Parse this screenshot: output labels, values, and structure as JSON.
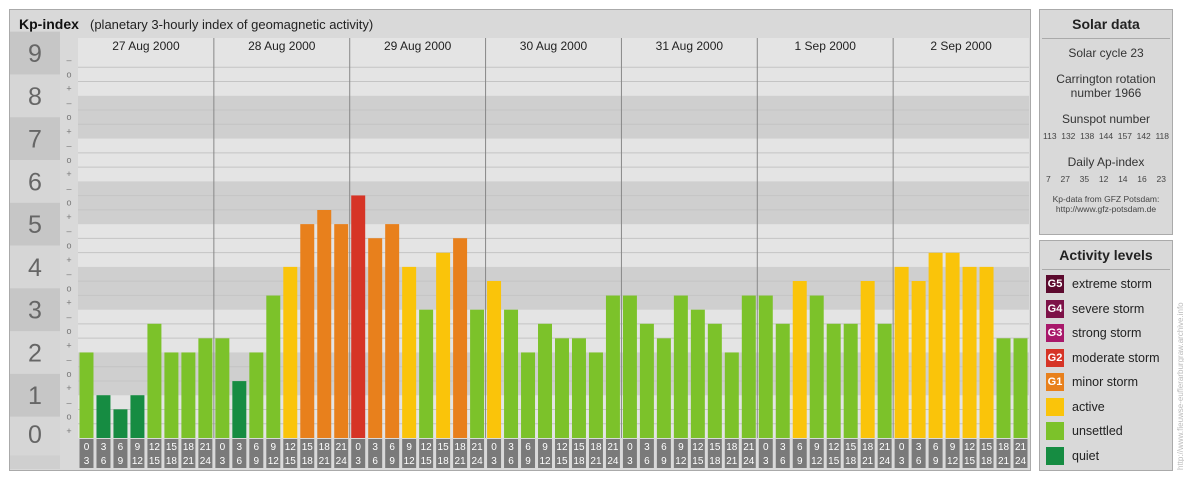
{
  "header": {
    "title": "Kp-index",
    "subtitle": "(planetary 3-hourly index of geomagnetic activity)"
  },
  "solar": {
    "title": "Solar data",
    "cycle": "Solar cycle 23",
    "carrington_line1": "Carrington rotation",
    "carrington_line2": "number 1966",
    "sunspot_title": "Sunspot number",
    "sunspot_values": [
      "113",
      "132",
      "138",
      "144",
      "157",
      "142",
      "118"
    ],
    "ap_title": "Daily Ap-index",
    "ap_values": [
      "7",
      "27",
      "35",
      "12",
      "14",
      "16",
      "23"
    ],
    "source_line1": "Kp-data from GFZ Potsdam:",
    "source_line2": "http://www.gfz-potsdam.de"
  },
  "activity": {
    "title": "Activity levels",
    "items": [
      {
        "code": "G5",
        "label": "extreme storm",
        "color": "#5c0a2e"
      },
      {
        "code": "G4",
        "label": "severe storm",
        "color": "#7d1248"
      },
      {
        "code": "G3",
        "label": "strong storm",
        "color": "#a8186a"
      },
      {
        "code": "G2",
        "label": "moderate storm",
        "color": "#d63426"
      },
      {
        "code": "G1",
        "label": "minor storm",
        "color": "#e8801c"
      },
      {
        "code": "",
        "label": "active",
        "color": "#fac40a"
      },
      {
        "code": "",
        "label": "unsettled",
        "color": "#7cc22a"
      },
      {
        "code": "",
        "label": "quiet",
        "color": "#168c42"
      }
    ]
  },
  "watermark": "http://www.fieuwse-euflerarburgraw.archive.info",
  "chart_data": {
    "type": "bar",
    "title": "Kp-index",
    "ylim": [
      0,
      9
    ],
    "y_ticks": [
      "0",
      "1",
      "2",
      "3",
      "4",
      "5",
      "6",
      "7",
      "8",
      "9"
    ],
    "sub_ticks": [
      "+",
      "o",
      "–"
    ],
    "days": [
      "27 Aug 2000",
      "28 Aug 2000",
      "29 Aug 2000",
      "30 Aug 2000",
      "31 Aug 2000",
      "1 Sep 2000",
      "2 Sep 2000"
    ],
    "hour_start": [
      "0",
      "3",
      "6",
      "9",
      "12",
      "15",
      "18",
      "21"
    ],
    "hour_end": [
      "3",
      "6",
      "9",
      "12",
      "15",
      "18",
      "21",
      "24"
    ],
    "values": [
      2.0,
      1.0,
      0.67,
      1.0,
      2.67,
      2.0,
      2.0,
      2.33,
      2.33,
      1.33,
      2.0,
      3.33,
      4.0,
      5.0,
      5.33,
      5.0,
      5.67,
      4.67,
      5.0,
      4.0,
      3.0,
      4.33,
      4.67,
      3.0,
      3.67,
      3.0,
      2.0,
      2.67,
      2.33,
      2.33,
      2.0,
      3.33,
      3.33,
      2.67,
      2.33,
      3.33,
      3.0,
      2.67,
      2.0,
      3.33,
      3.33,
      2.67,
      3.67,
      3.33,
      2.67,
      2.67,
      3.67,
      2.67,
      4.0,
      3.67,
      4.33,
      4.33,
      4.0,
      4.0,
      2.33,
      2.33
    ]
  }
}
